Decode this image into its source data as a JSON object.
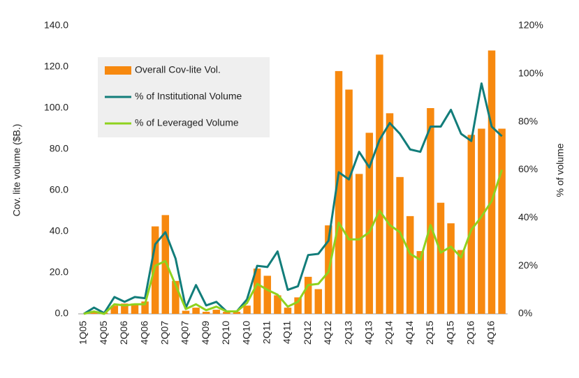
{
  "chart_data": {
    "type": "bar",
    "y_label": "Cov. lite volume ($B.)",
    "y2_label": "% of volume",
    "categories": [
      "1Q05",
      null,
      "4Q05",
      null,
      "2Q06",
      null,
      "4Q06",
      null,
      "2Q07",
      null,
      "4Q07",
      null,
      "4Q09",
      null,
      "2Q10",
      null,
      "4Q10",
      null,
      "2Q11",
      null,
      "4Q11",
      null,
      "2Q12",
      null,
      "4Q12",
      null,
      "2Q13",
      null,
      "4Q13",
      null,
      "2Q14",
      null,
      "4Q14",
      null,
      "2Q15",
      null,
      "4Q15",
      null,
      "2Q16",
      null,
      "4Q16",
      null
    ],
    "series": [
      {
        "name": "Overall Cov-lite Vol.",
        "type": "bar",
        "color": "#f7890f",
        "values": [
          0,
          1,
          0.5,
          4,
          5,
          5,
          6,
          42.5,
          48,
          16,
          1.5,
          3,
          1,
          2,
          1,
          1,
          4,
          22,
          18.5,
          9,
          3,
          8,
          18,
          12,
          43,
          118,
          109,
          68,
          88,
          126,
          97.5,
          66.5,
          47.5,
          30.5,
          100,
          54,
          44,
          31,
          87,
          90,
          128,
          90
        ]
      },
      {
        "name": "% of Institutional Volume",
        "type": "line",
        "axis": "y2",
        "color": "#127d7a",
        "values": [
          0,
          2.6,
          0.3,
          7,
          5,
          7,
          6.5,
          29,
          34,
          23,
          2.5,
          12,
          3.5,
          5,
          1,
          1,
          6,
          20,
          19.5,
          26,
          10,
          11.5,
          24.5,
          25,
          30.5,
          59,
          56,
          67.5,
          61,
          72.5,
          79.5,
          75,
          68.5,
          67.5,
          78,
          78,
          85,
          75,
          72,
          96,
          78,
          74
        ]
      },
      {
        "name": "% of Leveraged Volume",
        "type": "line",
        "axis": "y2",
        "color": "#8fd21e",
        "values": [
          0,
          1,
          0,
          4,
          3.5,
          4,
          4,
          20,
          22,
          12,
          2,
          4,
          1.5,
          3,
          1,
          1,
          4.5,
          12.5,
          10,
          8,
          3,
          5,
          12,
          12.5,
          17.5,
          38,
          31,
          31,
          34,
          43,
          37,
          34,
          25,
          22.5,
          37,
          25.5,
          28,
          23.5,
          35,
          40.5,
          47,
          60
        ]
      }
    ],
    "ylim": [
      0,
      140
    ],
    "yticks": [
      {
        "value": 0,
        "label": "0.0"
      },
      {
        "value": 20,
        "label": "20.0"
      },
      {
        "value": 40,
        "label": "40.0"
      },
      {
        "value": 60,
        "label": "60.0"
      },
      {
        "value": 80,
        "label": "80.0"
      },
      {
        "value": 100,
        "label": "100.0"
      },
      {
        "value": 120,
        "label": "120.0"
      },
      {
        "value": 140,
        "label": "140.0"
      }
    ],
    "y2lim": [
      0,
      120
    ],
    "y2ticks": [
      {
        "value": 0,
        "label": "0%"
      },
      {
        "value": 20,
        "label": "20%"
      },
      {
        "value": 40,
        "label": "40%"
      },
      {
        "value": 60,
        "label": "60%"
      },
      {
        "value": 80,
        "label": "80%"
      },
      {
        "value": 100,
        "label": "100%"
      },
      {
        "value": 120,
        "label": "120%"
      }
    ]
  }
}
